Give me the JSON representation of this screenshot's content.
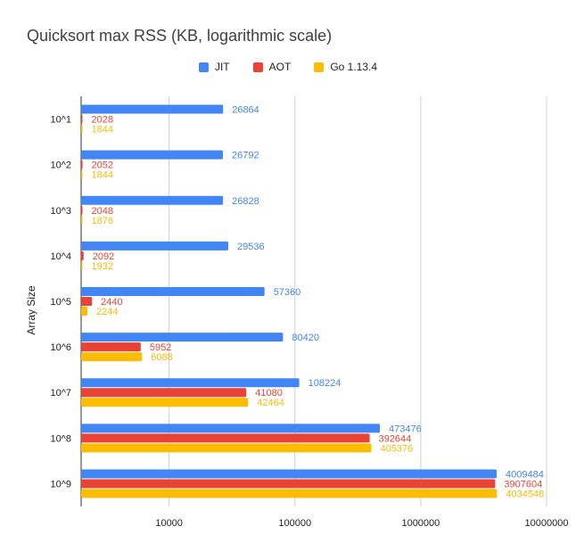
{
  "chart_data": {
    "type": "bar",
    "orientation": "horizontal",
    "title": "Quicksort max RSS (KB, logarithmic scale)",
    "ylabel": "Array Size",
    "xlabel": "",
    "x_scale": "log",
    "xlim": [
      2000,
      10000000
    ],
    "x_ticks": [
      "10000",
      "100000",
      "1000000",
      "10000000"
    ],
    "grid": "vertical",
    "legend_position": "top",
    "categories": [
      "10^1",
      "10^2",
      "10^3",
      "10^4",
      "10^5",
      "10^6",
      "10^7",
      "10^8",
      "10^9"
    ],
    "series": [
      {
        "name": "JIT",
        "color": "#4285f4",
        "values": [
          26864,
          26792,
          26828,
          29536,
          57360,
          80420,
          108224,
          473476,
          4009484
        ]
      },
      {
        "name": "AOT",
        "color": "#ea4335",
        "values": [
          2028,
          2052,
          2048,
          2092,
          2440,
          5952,
          41080,
          392644,
          3907604
        ]
      },
      {
        "name": "Go 1.13.4",
        "color": "#fbbc04",
        "values": [
          1844,
          1844,
          1876,
          1932,
          2244,
          6088,
          42464,
          405376,
          4034548
        ]
      }
    ]
  }
}
